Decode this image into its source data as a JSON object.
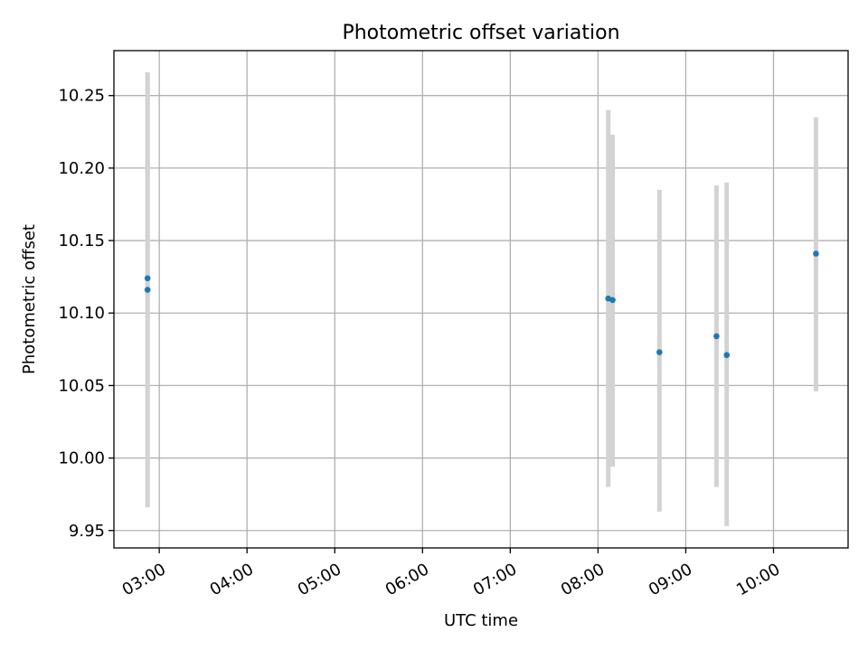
{
  "chart_data": {
    "type": "scatter",
    "title": "Photometric offset variation",
    "xlabel": "UTC time",
    "ylabel": "Photometric offset",
    "x_ticks": [
      "03:00",
      "04:00",
      "05:00",
      "06:00",
      "07:00",
      "08:00",
      "09:00",
      "10:00"
    ],
    "y_ticks": [
      "9.95",
      "10.00",
      "10.05",
      "10.10",
      "10.15",
      "10.20",
      "10.25"
    ],
    "xlim": [
      "02:29",
      "10:51"
    ],
    "ylim": [
      9.938,
      10.281
    ],
    "grid": true,
    "colors": {
      "point": "#1f77b4",
      "errorbar": "#d3d3d3",
      "grid": "#b0b0b0"
    },
    "points": [
      {
        "x": "02:52",
        "y": 10.124,
        "ylow": 9.966,
        "yhigh": 10.266
      },
      {
        "x": "02:52",
        "y": 10.116,
        "ylow": 9.966,
        "yhigh": 10.266
      },
      {
        "x": "08:07",
        "y": 10.11,
        "ylow": 9.98,
        "yhigh": 10.24
      },
      {
        "x": "08:10",
        "y": 10.109,
        "ylow": 9.994,
        "yhigh": 10.223
      },
      {
        "x": "08:42",
        "y": 10.073,
        "ylow": 9.963,
        "yhigh": 10.185
      },
      {
        "x": "09:21",
        "y": 10.084,
        "ylow": 9.98,
        "yhigh": 10.188
      },
      {
        "x": "09:28",
        "y": 10.071,
        "ylow": 9.953,
        "yhigh": 10.19
      },
      {
        "x": "10:29",
        "y": 10.141,
        "ylow": 10.046,
        "yhigh": 10.235
      }
    ]
  }
}
